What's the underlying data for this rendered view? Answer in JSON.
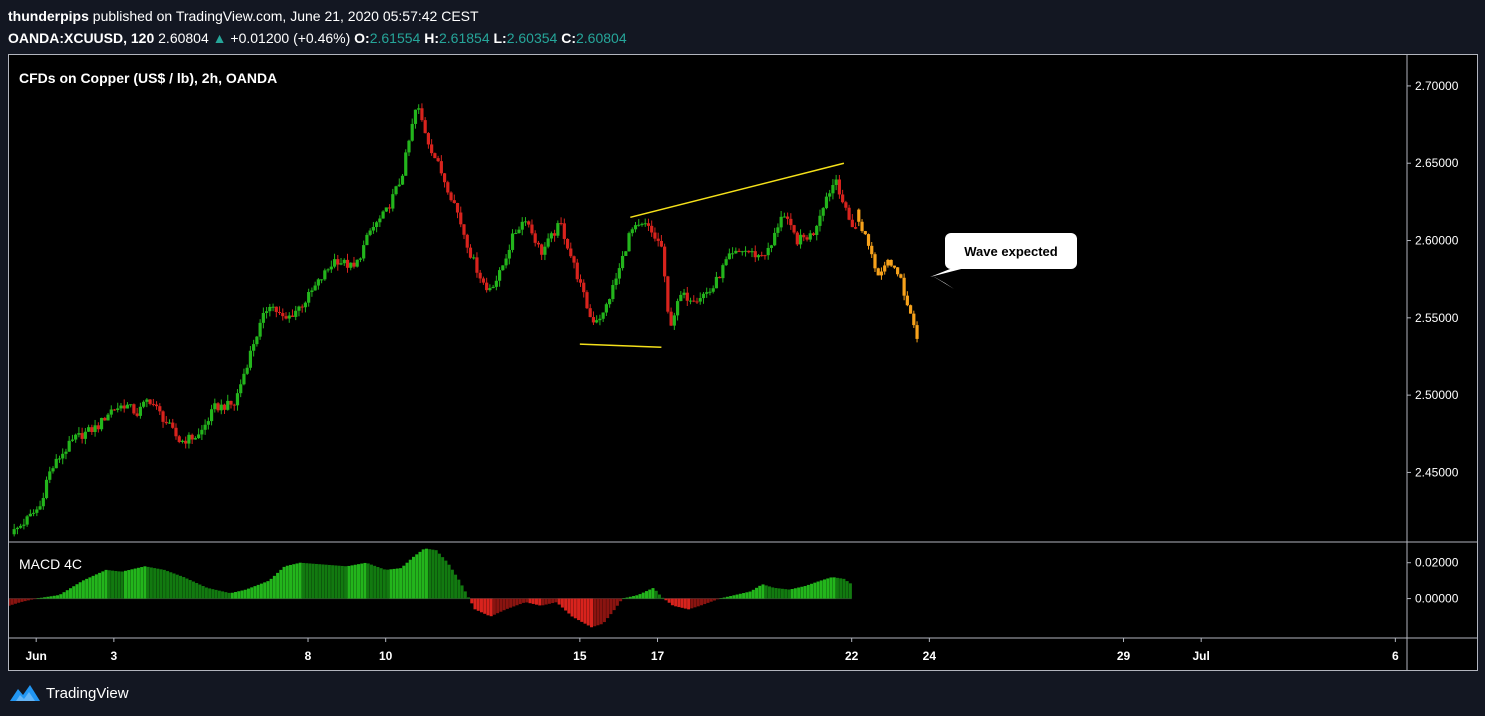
{
  "header": {
    "author": "thunderpips",
    "published_text": "published on TradingView.com, June 21, 2020 05:57:42 CEST",
    "symbol": "OANDA:XCUUSD, 120",
    "last": "2.60804",
    "change": "+0.01200 (+0.46%)",
    "open_label": "O:",
    "open": "2.61554",
    "high_label": "H:",
    "high": "2.61854",
    "low_label": "L:",
    "low": "2.60354",
    "close_label": "C:",
    "close": "2.60804"
  },
  "footer": {
    "brand": "TradingView",
    "logo_icon": "tradingview-logo-icon"
  },
  "colors": {
    "up": "#26a69a",
    "candle_up": "#23b51c",
    "candle_down": "#d8231d",
    "projection": "#f7a21b",
    "trendline": "#f5e11a",
    "background": "#000000"
  },
  "chart_data": [
    {
      "type": "candlestick",
      "title": "CFDs on Copper (US$ / lb), 2h, OANDA",
      "ylim": [
        2.405,
        2.72
      ],
      "y_ticks": [
        "2.70000",
        "2.65000",
        "2.60000",
        "2.55000",
        "2.50000",
        "2.45000"
      ],
      "y_tick_values": [
        2.7,
        2.65,
        2.6,
        2.55,
        2.5,
        2.45
      ],
      "x_ticks": [
        "Jun",
        "3",
        "8",
        "10",
        "15",
        "17",
        "22",
        "24",
        "29",
        "Jul",
        "6"
      ],
      "x_tick_positions": [
        1,
        3,
        8,
        10,
        15,
        17,
        22,
        24,
        29,
        31,
        36
      ],
      "x_range": [
        0.3,
        36.3
      ],
      "anchors": [
        {
          "d": 0.35,
          "p": 2.41
        },
        {
          "d": 0.7,
          "p": 2.418
        },
        {
          "d": 1.1,
          "p": 2.428
        },
        {
          "d": 1.3,
          "p": 2.448
        },
        {
          "d": 1.6,
          "p": 2.46
        },
        {
          "d": 2.0,
          "p": 2.472
        },
        {
          "d": 2.6,
          "p": 2.48
        },
        {
          "d": 2.9,
          "p": 2.49
        },
        {
          "d": 3.3,
          "p": 2.494
        },
        {
          "d": 3.6,
          "p": 2.488
        },
        {
          "d": 3.9,
          "p": 2.498
        },
        {
          "d": 4.3,
          "p": 2.484
        },
        {
          "d": 4.7,
          "p": 2.47
        },
        {
          "d": 5.2,
          "p": 2.474
        },
        {
          "d": 5.6,
          "p": 2.492
        },
        {
          "d": 6.1,
          "p": 2.494
        },
        {
          "d": 6.6,
          "p": 2.534
        },
        {
          "d": 7.0,
          "p": 2.56
        },
        {
          "d": 7.4,
          "p": 2.548
        },
        {
          "d": 7.9,
          "p": 2.56
        },
        {
          "d": 8.3,
          "p": 2.574
        },
        {
          "d": 8.7,
          "p": 2.588
        },
        {
          "d": 9.2,
          "p": 2.582
        },
        {
          "d": 9.6,
          "p": 2.606
        },
        {
          "d": 10.0,
          "p": 2.618
        },
        {
          "d": 10.4,
          "p": 2.64
        },
        {
          "d": 10.8,
          "p": 2.688
        },
        {
          "d": 11.1,
          "p": 2.664
        },
        {
          "d": 11.5,
          "p": 2.64
        },
        {
          "d": 11.8,
          "p": 2.622
        },
        {
          "d": 12.2,
          "p": 2.59
        },
        {
          "d": 12.6,
          "p": 2.568
        },
        {
          "d": 12.9,
          "p": 2.576
        },
        {
          "d": 13.3,
          "p": 2.604
        },
        {
          "d": 13.6,
          "p": 2.615
        },
        {
          "d": 14.0,
          "p": 2.592
        },
        {
          "d": 14.5,
          "p": 2.611
        },
        {
          "d": 14.9,
          "p": 2.58
        },
        {
          "d": 15.3,
          "p": 2.548
        },
        {
          "d": 15.6,
          "p": 2.552
        },
        {
          "d": 16.0,
          "p": 2.58
        },
        {
          "d": 16.3,
          "p": 2.606
        },
        {
          "d": 16.7,
          "p": 2.61
        },
        {
          "d": 17.1,
          "p": 2.596
        },
        {
          "d": 17.3,
          "p": 2.544
        },
        {
          "d": 17.6,
          "p": 2.564
        },
        {
          "d": 18.0,
          "p": 2.563
        },
        {
          "d": 18.4,
          "p": 2.568
        },
        {
          "d": 18.8,
          "p": 2.588
        },
        {
          "d": 19.2,
          "p": 2.594
        },
        {
          "d": 19.6,
          "p": 2.59
        },
        {
          "d": 19.9,
          "p": 2.594
        },
        {
          "d": 20.2,
          "p": 2.618
        },
        {
          "d": 20.6,
          "p": 2.6
        },
        {
          "d": 21.0,
          "p": 2.604
        },
        {
          "d": 21.3,
          "p": 2.626
        },
        {
          "d": 21.6,
          "p": 2.64
        },
        {
          "d": 21.9,
          "p": 2.614
        },
        {
          "d": 22.1,
          "p": 2.608
        }
      ],
      "projection": {
        "color": "#f7a21b",
        "label": "Wave expected",
        "points": [
          {
            "d": 22.1,
            "p": 2.62
          },
          {
            "d": 22.4,
            "p": 2.598
          },
          {
            "d": 22.7,
            "p": 2.576
          },
          {
            "d": 22.95,
            "p": 2.588
          },
          {
            "d": 23.25,
            "p": 2.576
          },
          {
            "d": 23.5,
            "p": 2.552
          },
          {
            "d": 23.7,
            "p": 2.536
          }
        ]
      },
      "trendlines": [
        {
          "name": "upper",
          "from": {
            "d": 16.3,
            "p": 2.615
          },
          "to": {
            "d": 21.8,
            "p": 2.65
          }
        },
        {
          "name": "lower",
          "from": {
            "d": 15.0,
            "p": 2.533
          },
          "to": {
            "d": 17.1,
            "p": 2.531
          }
        }
      ]
    },
    {
      "type": "histogram",
      "title": "MACD 4C",
      "ylim": [
        -0.022,
        0.031
      ],
      "y_ticks": [
        "0.02000",
        "0.00000"
      ],
      "y_tick_values": [
        0.02,
        0.0
      ],
      "anchors": [
        {
          "d": 0.3,
          "v": -0.004
        },
        {
          "d": 0.6,
          "v": -0.002
        },
        {
          "d": 1.0,
          "v": 0.0
        },
        {
          "d": 1.6,
          "v": 0.002
        },
        {
          "d": 2.2,
          "v": 0.01
        },
        {
          "d": 2.8,
          "v": 0.016
        },
        {
          "d": 3.2,
          "v": 0.015
        },
        {
          "d": 3.8,
          "v": 0.018
        },
        {
          "d": 4.3,
          "v": 0.016
        },
        {
          "d": 4.8,
          "v": 0.012
        },
        {
          "d": 5.4,
          "v": 0.006
        },
        {
          "d": 6.0,
          "v": 0.003
        },
        {
          "d": 6.4,
          "v": 0.005
        },
        {
          "d": 7.0,
          "v": 0.01
        },
        {
          "d": 7.4,
          "v": 0.018
        },
        {
          "d": 7.8,
          "v": 0.02
        },
        {
          "d": 8.4,
          "v": 0.019
        },
        {
          "d": 9.0,
          "v": 0.018
        },
        {
          "d": 9.5,
          "v": 0.02
        },
        {
          "d": 10.0,
          "v": 0.016
        },
        {
          "d": 10.4,
          "v": 0.017
        },
        {
          "d": 10.7,
          "v": 0.023
        },
        {
          "d": 11.0,
          "v": 0.028
        },
        {
          "d": 11.3,
          "v": 0.027
        },
        {
          "d": 11.6,
          "v": 0.02
        },
        {
          "d": 11.9,
          "v": 0.01
        },
        {
          "d": 12.1,
          "v": 0.002
        },
        {
          "d": 12.3,
          "v": -0.006
        },
        {
          "d": 12.7,
          "v": -0.01
        },
        {
          "d": 13.1,
          "v": -0.006
        },
        {
          "d": 13.6,
          "v": -0.002
        },
        {
          "d": 14.0,
          "v": -0.004
        },
        {
          "d": 14.4,
          "v": -0.002
        },
        {
          "d": 14.8,
          "v": -0.01
        },
        {
          "d": 15.3,
          "v": -0.016
        },
        {
          "d": 15.6,
          "v": -0.014
        },
        {
          "d": 15.9,
          "v": -0.006
        },
        {
          "d": 16.1,
          "v": 0.0
        },
        {
          "d": 16.5,
          "v": 0.002
        },
        {
          "d": 16.9,
          "v": 0.006
        },
        {
          "d": 17.1,
          "v": 0.001
        },
        {
          "d": 17.4,
          "v": -0.004
        },
        {
          "d": 17.8,
          "v": -0.006
        },
        {
          "d": 18.1,
          "v": -0.004
        },
        {
          "d": 18.6,
          "v": 0.0
        },
        {
          "d": 19.0,
          "v": 0.002
        },
        {
          "d": 19.4,
          "v": 0.004
        },
        {
          "d": 19.7,
          "v": 0.008
        },
        {
          "d": 20.0,
          "v": 0.006
        },
        {
          "d": 20.4,
          "v": 0.005
        },
        {
          "d": 20.8,
          "v": 0.007
        },
        {
          "d": 21.2,
          "v": 0.01
        },
        {
          "d": 21.5,
          "v": 0.012
        },
        {
          "d": 21.8,
          "v": 0.011
        },
        {
          "d": 22.0,
          "v": 0.008
        }
      ]
    }
  ]
}
